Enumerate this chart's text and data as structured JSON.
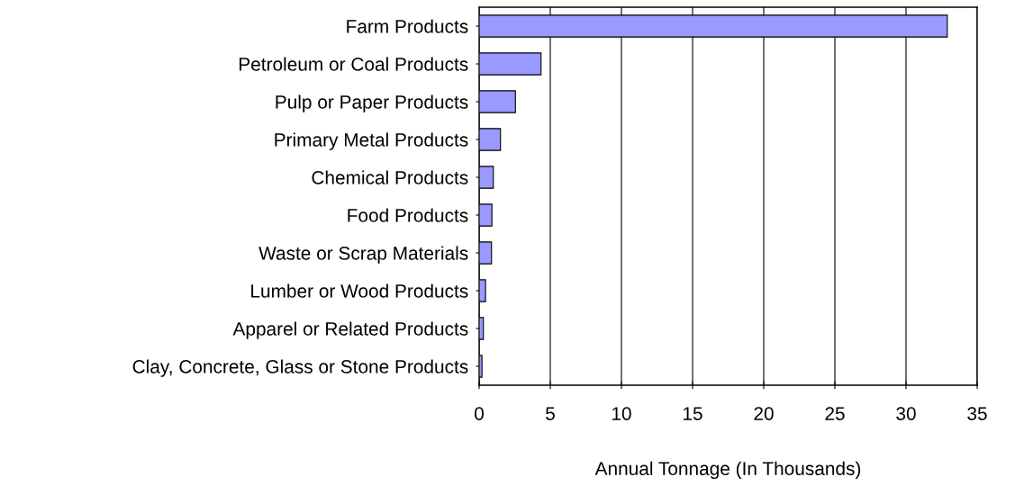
{
  "chart_data": {
    "type": "bar",
    "orientation": "horizontal",
    "xlabel": "Annual Tonnage (In Thousands)",
    "categories": [
      "Farm Products",
      "Petroleum or Coal Products",
      "Pulp or Paper Products",
      "Primary Metal Products",
      "Chemical Products",
      "Food Products",
      "Waste or Scrap Materials",
      "Lumber or Wood Products",
      "Apparel or Related Products",
      "Clay, Concrete, Glass or Stone Products"
    ],
    "values": [
      32.9,
      4.35,
      2.55,
      1.5,
      1.0,
      0.9,
      0.87,
      0.45,
      0.3,
      0.2
    ],
    "color": "#9999ff",
    "xlim": [
      0,
      35
    ],
    "xticks": [
      0,
      5,
      10,
      15,
      20,
      25,
      30,
      35
    ],
    "grid": "x"
  }
}
